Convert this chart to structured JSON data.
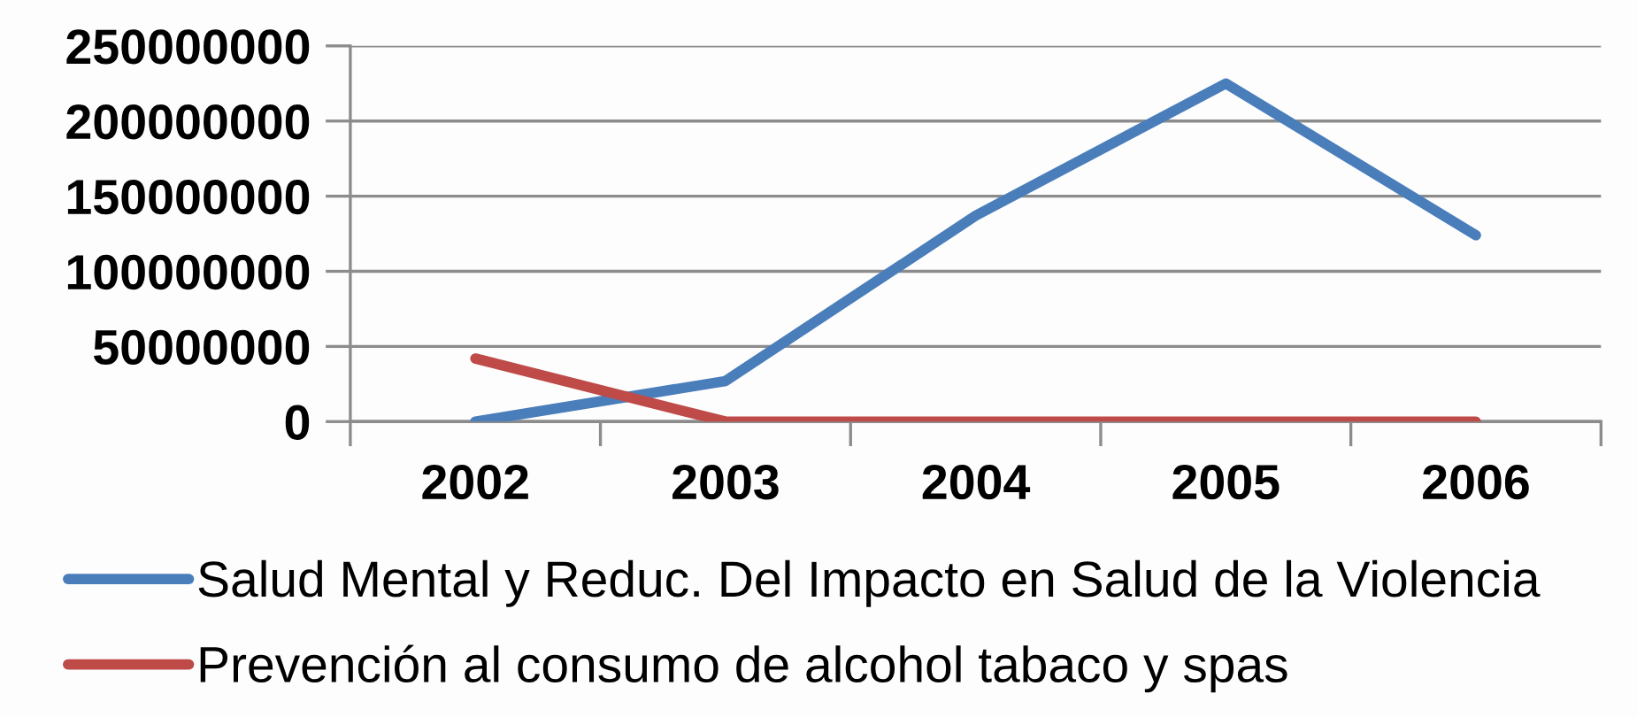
{
  "chart_data": {
    "type": "line",
    "categories": [
      "2002",
      "2003",
      "2004",
      "2005",
      "2006"
    ],
    "series": [
      {
        "name": "Salud Mental y Reduc. Del Impacto en Salud de la Violencia",
        "color": "#4a7ebb",
        "values": [
          0,
          27000000,
          137000000,
          225000000,
          124000000
        ]
      },
      {
        "name": "Prevención al consumo de alcohol tabaco y spas",
        "color": "#be4b48",
        "values": [
          42000000,
          0,
          0,
          0,
          0
        ]
      }
    ],
    "ylim": [
      0,
      250000000
    ],
    "yticks": [
      0,
      50000000,
      100000000,
      150000000,
      200000000,
      250000000
    ],
    "grid": "y",
    "legend": "bottom",
    "marker": "none",
    "line_style": "solid"
  }
}
